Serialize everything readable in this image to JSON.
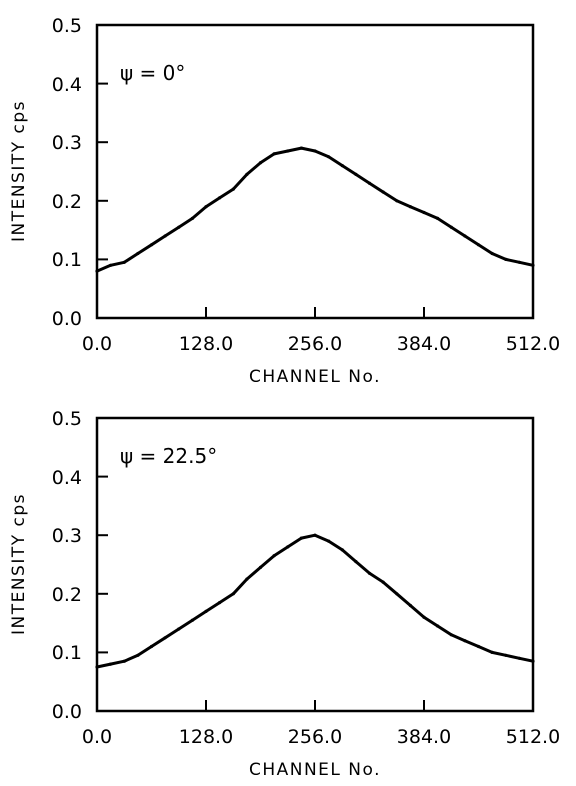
{
  "chart_data": [
    {
      "type": "line",
      "annotation": "ψ = 0°",
      "xlabel": "CHANNEL No.",
      "ylabel": "INTENSITY cps",
      "xlim": [
        0,
        512
      ],
      "ylim": [
        0,
        0.5
      ],
      "xticks": [
        "0.0",
        "128.0",
        "256.0",
        "384.0",
        "512.0"
      ],
      "yticks": [
        "0.0",
        "0.1",
        "0.2",
        "0.3",
        "0.4",
        "0.5"
      ],
      "grid": false,
      "legend": "none",
      "color": "#000000",
      "series": [
        {
          "x": [
            0,
            16,
            32,
            48,
            64,
            80,
            96,
            112,
            128,
            144,
            160,
            176,
            192,
            208,
            224,
            240,
            256,
            272,
            288,
            304,
            320,
            336,
            352,
            368,
            384,
            400,
            416,
            432,
            448,
            464,
            480,
            496,
            512
          ],
          "y": [
            0.08,
            0.09,
            0.095,
            0.11,
            0.125,
            0.14,
            0.155,
            0.17,
            0.19,
            0.205,
            0.22,
            0.245,
            0.265,
            0.28,
            0.285,
            0.29,
            0.285,
            0.275,
            0.26,
            0.245,
            0.23,
            0.215,
            0.2,
            0.19,
            0.18,
            0.17,
            0.155,
            0.14,
            0.125,
            0.11,
            0.1,
            0.095,
            0.09
          ]
        }
      ]
    },
    {
      "type": "line",
      "annotation": "ψ = 22.5°",
      "xlabel": "CHANNEL No.",
      "ylabel": "INTENSITY cps",
      "xlim": [
        0,
        512
      ],
      "ylim": [
        0,
        0.5
      ],
      "xticks": [
        "0.0",
        "128.0",
        "256.0",
        "384.0",
        "512.0"
      ],
      "yticks": [
        "0.0",
        "0.1",
        "0.2",
        "0.3",
        "0.4",
        "0.5"
      ],
      "grid": false,
      "legend": "none",
      "color": "#000000",
      "series": [
        {
          "x": [
            0,
            16,
            32,
            48,
            64,
            80,
            96,
            112,
            128,
            144,
            160,
            176,
            192,
            208,
            224,
            240,
            256,
            272,
            288,
            304,
            320,
            336,
            352,
            368,
            384,
            400,
            416,
            432,
            448,
            464,
            480,
            496,
            512
          ],
          "y": [
            0.075,
            0.08,
            0.085,
            0.095,
            0.11,
            0.125,
            0.14,
            0.155,
            0.17,
            0.185,
            0.2,
            0.225,
            0.245,
            0.265,
            0.28,
            0.295,
            0.3,
            0.29,
            0.275,
            0.255,
            0.235,
            0.22,
            0.2,
            0.18,
            0.16,
            0.145,
            0.13,
            0.12,
            0.11,
            0.1,
            0.095,
            0.09,
            0.085
          ]
        }
      ]
    }
  ]
}
